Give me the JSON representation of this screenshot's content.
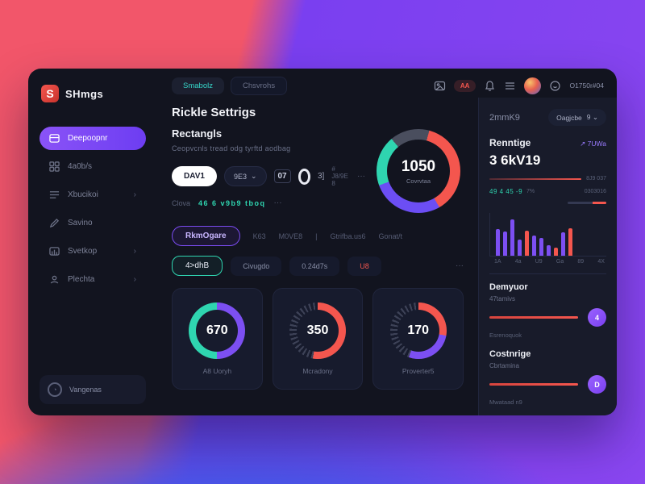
{
  "colors": {
    "coral": "#f2566a",
    "purple": "#7a3ff0",
    "blue": "#4b54e8",
    "accent_purple": "#7c4ff2",
    "accent_teal": "#2fd5b0",
    "accent_red": "#f4564e"
  },
  "sidebar": {
    "logo_mark": "S",
    "logo_text": "SHmgs",
    "items": [
      {
        "label": "Deepoopnr",
        "chevron": ""
      },
      {
        "label": "4a0b/s",
        "chevron": ""
      },
      {
        "label": "Xbucikoi",
        "chevron": "›"
      },
      {
        "label": "Savino",
        "chevron": ""
      },
      {
        "label": "Svetkop",
        "chevron": "›"
      },
      {
        "label": "Plechta",
        "chevron": "›"
      }
    ],
    "footer_label": "Vangenas"
  },
  "topbar": {
    "tabs": [
      {
        "label": "Smabolz"
      },
      {
        "label": "Chsvrohs"
      }
    ],
    "badge": "AA",
    "username": "O1750r#04"
  },
  "main": {
    "title": "Rickle Settrigs",
    "records": {
      "title": "Rectangls",
      "subtitle": "Ceopvcnls tread odg tyrftd aodbag",
      "primary_pill": "DAV1",
      "secondary_pill": "9E3",
      "secondary_caret": "⌄",
      "counter": "07",
      "stack": "3]",
      "caption": "# J8/9E 8",
      "more": "···",
      "meta_label": "Clova",
      "meta_value": "46 6 v9b9 tboq",
      "meta_more": "···"
    },
    "filters": {
      "primary": "RkmOgare",
      "options": [
        {
          "label": "K63"
        },
        {
          "label": "M0VE8"
        },
        {
          "label": "|"
        },
        {
          "label": "Gtrifba.us6"
        },
        {
          "label": "Gonat/t"
        }
      ],
      "chips": [
        {
          "label": "4>dhB"
        },
        {
          "label": "Civugdo"
        },
        {
          "label": "0.24d7s"
        },
        {
          "label": "U8"
        }
      ],
      "more": "···"
    }
  },
  "right": {
    "meta": "2mmK9",
    "dropdown_label": "Oagjcbe",
    "dropdown_caret": "9 ⌄",
    "earnings": {
      "title": "Renntige",
      "delta": "↗ 7UWa",
      "value": "3 6kV19",
      "row1_value": "8J9 037",
      "row2_label": "49 4 45 -9",
      "row2_pct": "7%",
      "row2_value": "0303016"
    },
    "sections": [
      {
        "title": "Demyuor",
        "subtitle": "47tamivs",
        "footnote": "Esrenoquok",
        "handle": "4"
      },
      {
        "title": "Costnrige",
        "subtitle": "Cbrtamina",
        "footnote": "Mwataad n9",
        "handle": "D"
      }
    ]
  },
  "chart_data": [
    {
      "type": "donut",
      "name": "main-donut",
      "center": "1050",
      "label": "Covrvtaa",
      "start_deg": 15,
      "segments": [
        {
          "color": "#f4564e",
          "deg": 135
        },
        {
          "color": "#6c4ef4",
          "deg": 100
        },
        {
          "color": "#2fd5b0",
          "deg": 70
        },
        {
          "color": "#4a4e5e",
          "deg": 55
        }
      ]
    },
    {
      "type": "donut",
      "name": "card-donut-1",
      "center": "670",
      "label": "A8 Uoryh",
      "start_deg": 0,
      "segments": [
        {
          "color": "#7c4ff2",
          "deg": 180
        },
        {
          "color": "#2fd5b0",
          "deg": 180
        }
      ]
    },
    {
      "type": "donut",
      "name": "card-donut-2",
      "center": "350",
      "label": "Mcradony",
      "start_deg": 0,
      "ticks": true,
      "segments": [
        {
          "color": "#f4564e",
          "deg": 190
        }
      ]
    },
    {
      "type": "donut",
      "name": "card-donut-3",
      "center": "170",
      "label": "Proverter5",
      "start_deg": 0,
      "ticks": true,
      "segments": [
        {
          "color": "#f4564e",
          "deg": 100
        },
        {
          "color": "#7c4ff2",
          "deg": 100
        }
      ]
    },
    {
      "type": "bar",
      "name": "earnings-bars",
      "x_labels": [
        "1A",
        "4a",
        "U9",
        "Ga",
        "89",
        "4X"
      ],
      "ylim": [
        0,
        100
      ],
      "bars": [
        {
          "value": 62,
          "color": "#7c4ff2"
        },
        {
          "value": 58,
          "color": "#7c4ff2"
        },
        {
          "value": 85,
          "color": "#7c4ff2"
        },
        {
          "value": 38,
          "color": "#7c4ff2"
        },
        {
          "value": 60,
          "color": "#f4564e"
        },
        {
          "value": 48,
          "color": "#7c4ff2"
        },
        {
          "value": 42,
          "color": "#7c4ff2"
        },
        {
          "value": 25,
          "color": "#7c4ff2"
        },
        {
          "value": 20,
          "color": "#f4564e"
        },
        {
          "value": 55,
          "color": "#7c4ff2"
        },
        {
          "value": 65,
          "color": "#f4564e"
        }
      ]
    }
  ]
}
